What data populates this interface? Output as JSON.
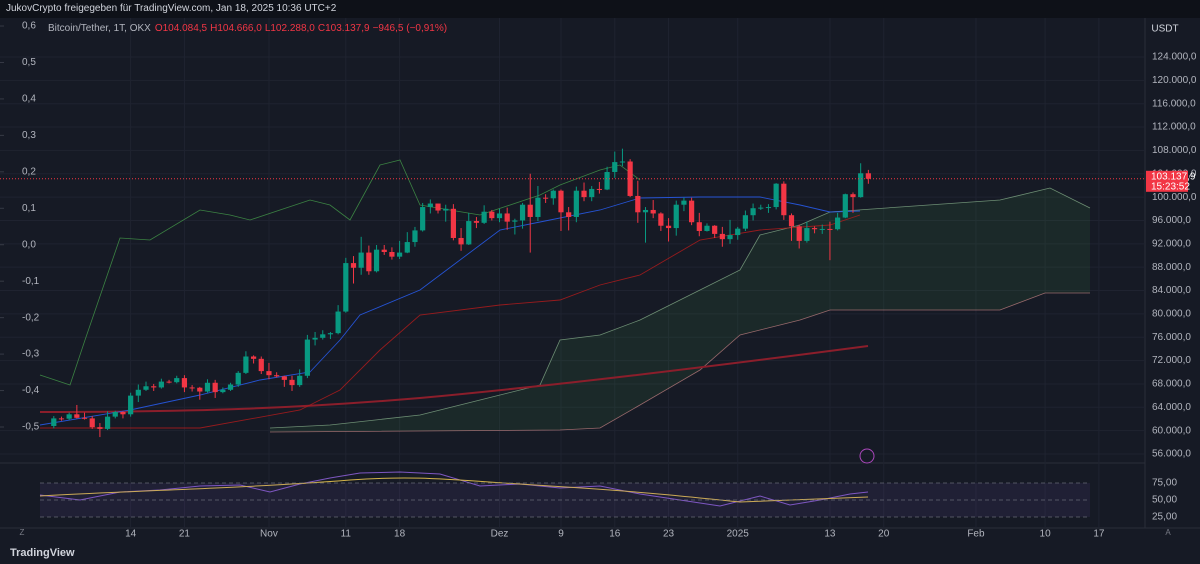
{
  "header": "JukovCrypto freigegeben für TradingView.com, Jan 18, 2025 10:36 UTC+2",
  "footer": "TradingView",
  "controls": [
    "Z",
    "A"
  ],
  "chart_data": {
    "type": "candlestick",
    "title": "Bitcoin/Tether, 1T, OKX",
    "legend_values": [
      "O104.084,5",
      "H104.666,0",
      "L102.288,0",
      "C103.137,9",
      "−946,5 (−0,91%)"
    ],
    "currency": "USDT",
    "price_label": "103.137,9",
    "countdown": "15:23:52",
    "up_color": "#089981",
    "down_color": "#f23645",
    "grid": true,
    "xlim": [
      "2024-09-27",
      "2025-02-23"
    ],
    "xticks": [
      {
        "value": "2024-10-14",
        "label": "14"
      },
      {
        "value": "2024-10-21",
        "label": "21"
      },
      {
        "value": "2024-11-01",
        "label": "Nov"
      },
      {
        "value": "2024-11-11",
        "label": "11"
      },
      {
        "value": "2024-11-18",
        "label": "18"
      },
      {
        "value": "2024-12-01",
        "label": "Dez"
      },
      {
        "value": "2024-12-09",
        "label": "9"
      },
      {
        "value": "2024-12-16",
        "label": "16"
      },
      {
        "value": "2024-12-23",
        "label": "23"
      },
      {
        "value": "2025-01-01",
        "label": "2025"
      },
      {
        "value": "2025-01-13",
        "label": "13"
      },
      {
        "value": "2025-01-20",
        "label": "20"
      },
      {
        "value": "2025-02-01",
        "label": "Feb"
      },
      {
        "value": "2025-02-10",
        "label": "10"
      },
      {
        "value": "2025-02-17",
        "label": "17"
      }
    ],
    "ylim": [
      54630,
      130680
    ],
    "yticks": [
      {
        "value": 124000,
        "label": "124.000,0"
      },
      {
        "value": 120000,
        "label": "120.000,0"
      },
      {
        "value": 116000,
        "label": "116.000,0"
      },
      {
        "value": 112000,
        "label": "112.000,0"
      },
      {
        "value": 108000,
        "label": "108.000,0"
      },
      {
        "value": 104000,
        "label": "104.000,0"
      },
      {
        "value": 100000,
        "label": "100.000,0"
      },
      {
        "value": 96000,
        "label": "96.000,0"
      },
      {
        "value": 92000,
        "label": "92.000,0"
      },
      {
        "value": 88000,
        "label": "88.000,0"
      },
      {
        "value": 84000,
        "label": "84.000,0"
      },
      {
        "value": 80000,
        "label": "80.000,0"
      },
      {
        "value": 76000,
        "label": "76.000,0"
      },
      {
        "value": 72000,
        "label": "72.000,0"
      },
      {
        "value": 68000,
        "label": "68.000,0"
      },
      {
        "value": 64000,
        "label": "64.000,0"
      },
      {
        "value": 60000,
        "label": "60.000,0"
      },
      {
        "value": 56000,
        "label": "56.000,0"
      }
    ],
    "y2lim": [
      -0.596,
      0.622
    ],
    "y2ticks": [
      {
        "value": 0.6,
        "label": "0,6"
      },
      {
        "value": 0.5,
        "label": "0,5"
      },
      {
        "value": 0.4,
        "label": "0,4"
      },
      {
        "value": 0.3,
        "label": "0,3"
      },
      {
        "value": 0.2,
        "label": "0,2"
      },
      {
        "value": 0.1,
        "label": "0,1"
      },
      {
        "value": 0,
        "label": "0,0"
      },
      {
        "value": -0.1,
        "label": "-0,1"
      },
      {
        "value": -0.2,
        "label": "-0,2"
      },
      {
        "value": -0.3,
        "label": "-0,3"
      },
      {
        "value": -0.4,
        "label": "-0,4"
      },
      {
        "value": -0.5,
        "label": "-0,5"
      }
    ],
    "rsi": {
      "ylim": [
        17.6,
        100
      ],
      "yticks": [
        {
          "value": 75,
          "label": "75,00"
        },
        {
          "value": 50,
          "label": "50,00"
        },
        {
          "value": 25,
          "label": "25,00"
        }
      ]
    },
    "x": [
      "2024-10-04",
      "2024-10-05",
      "2024-10-06",
      "2024-10-07",
      "2024-10-08",
      "2024-10-09",
      "2024-10-10",
      "2024-10-11",
      "2024-10-12",
      "2024-10-13",
      "2024-10-14",
      "2024-10-15",
      "2024-10-16",
      "2024-10-17",
      "2024-10-18",
      "2024-10-19",
      "2024-10-20",
      "2024-10-21",
      "2024-10-22",
      "2024-10-23",
      "2024-10-24",
      "2024-10-25",
      "2024-10-26",
      "2024-10-27",
      "2024-10-28",
      "2024-10-29",
      "2024-10-30",
      "2024-10-31",
      "2024-11-01",
      "2024-11-02",
      "2024-11-03",
      "2024-11-04",
      "2024-11-05",
      "2024-11-06",
      "2024-11-07",
      "2024-11-08",
      "2024-11-09",
      "2024-11-10",
      "2024-11-11",
      "2024-11-12",
      "2024-11-13",
      "2024-11-14",
      "2024-11-15",
      "2024-11-16",
      "2024-11-17",
      "2024-11-18",
      "2024-11-19",
      "2024-11-20",
      "2024-11-21",
      "2024-11-22",
      "2024-11-23",
      "2024-11-24",
      "2024-11-25",
      "2024-11-26",
      "2024-11-27",
      "2024-11-28",
      "2024-11-29",
      "2024-11-30",
      "2024-12-01",
      "2024-12-02",
      "2024-12-03",
      "2024-12-04",
      "2024-12-05",
      "2024-12-06",
      "2024-12-07",
      "2024-12-08",
      "2024-12-09",
      "2024-12-10",
      "2024-12-11",
      "2024-12-12",
      "2024-12-13",
      "2024-12-14",
      "2024-12-15",
      "2024-12-16",
      "2024-12-17",
      "2024-12-18",
      "2024-12-19",
      "2024-12-20",
      "2024-12-21",
      "2024-12-22",
      "2024-12-23",
      "2024-12-24",
      "2024-12-25",
      "2024-12-26",
      "2024-12-27",
      "2024-12-28",
      "2024-12-29",
      "2024-12-30",
      "2024-12-31",
      "2025-01-01",
      "2025-01-02",
      "2025-01-03",
      "2025-01-04",
      "2025-01-05",
      "2025-01-06",
      "2025-01-07",
      "2025-01-08",
      "2025-01-09",
      "2025-01-10",
      "2025-01-11",
      "2025-01-12",
      "2025-01-13",
      "2025-01-14",
      "2025-01-15",
      "2025-01-16",
      "2025-01-17",
      "2025-01-18"
    ],
    "values": [
      [
        60800,
        62500,
        60400,
        62100
      ],
      [
        62100,
        62400,
        61700,
        62050
      ],
      [
        62050,
        63100,
        61800,
        62800
      ],
      [
        62800,
        64400,
        62100,
        62200
      ],
      [
        62200,
        63100,
        61900,
        62100
      ],
      [
        62100,
        62500,
        60300,
        60600
      ],
      [
        60600,
        61300,
        58900,
        60300
      ],
      [
        60300,
        63300,
        60100,
        62400
      ],
      [
        62400,
        63400,
        62100,
        63200
      ],
      [
        63200,
        63300,
        62100,
        62800
      ],
      [
        62800,
        66500,
        62400,
        66000
      ],
      [
        66000,
        67900,
        64900,
        67000
      ],
      [
        67000,
        68400,
        66800,
        67600
      ],
      [
        67600,
        68000,
        66800,
        67400
      ],
      [
        67400,
        68900,
        67200,
        68400
      ],
      [
        68400,
        68700,
        68100,
        68300
      ],
      [
        68300,
        69400,
        68100,
        69000
      ],
      [
        69000,
        69500,
        66600,
        67400
      ],
      [
        67400,
        67800,
        66700,
        67350
      ],
      [
        67350,
        67500,
        65300,
        66700
      ],
      [
        66700,
        68800,
        66500,
        68200
      ],
      [
        68200,
        68700,
        65600,
        66600
      ],
      [
        66600,
        67400,
        66400,
        67000
      ],
      [
        67000,
        68200,
        66800,
        67900
      ],
      [
        67900,
        70200,
        67500,
        69900
      ],
      [
        69900,
        73600,
        69700,
        72700
      ],
      [
        72700,
        72900,
        71500,
        72300
      ],
      [
        72300,
        72700,
        69700,
        70200
      ],
      [
        70200,
        71600,
        68800,
        69500
      ],
      [
        69500,
        70000,
        69100,
        69300
      ],
      [
        69300,
        69400,
        67500,
        68700
      ],
      [
        68700,
        69400,
        66800,
        67800
      ],
      [
        67800,
        70500,
        67500,
        69400
      ],
      [
        69400,
        76400,
        69000,
        75600
      ],
      [
        75600,
        76900,
        74600,
        75900
      ],
      [
        75900,
        77200,
        75600,
        76500
      ],
      [
        76500,
        76900,
        75700,
        76700
      ],
      [
        76700,
        81500,
        76500,
        80400
      ],
      [
        80400,
        89600,
        80200,
        88700
      ],
      [
        88700,
        89900,
        85200,
        87900
      ],
      [
        87900,
        93200,
        86700,
        90500
      ],
      [
        90500,
        91700,
        86700,
        87300
      ],
      [
        87300,
        91800,
        87100,
        91000
      ],
      [
        91000,
        91800,
        90100,
        90600
      ],
      [
        90600,
        91400,
        89300,
        89800
      ],
      [
        89800,
        92500,
        89400,
        90500
      ],
      [
        90500,
        94000,
        90400,
        92300
      ],
      [
        92300,
        94900,
        91500,
        94300
      ],
      [
        94300,
        99000,
        94100,
        98300
      ],
      [
        98300,
        99600,
        97200,
        98900
      ],
      [
        98900,
        98900,
        97200,
        97700
      ],
      [
        97700,
        98700,
        95800,
        98000
      ],
      [
        98000,
        98800,
        92600,
        93000
      ],
      [
        93000,
        94700,
        90800,
        91900
      ],
      [
        91900,
        97300,
        91800,
        95900
      ],
      [
        95900,
        96600,
        94700,
        95600
      ],
      [
        95600,
        98600,
        95400,
        97500
      ],
      [
        97500,
        97800,
        96000,
        96400
      ],
      [
        96400,
        98000,
        95700,
        97200
      ],
      [
        97200,
        98200,
        94400,
        95800
      ],
      [
        95800,
        96300,
        93600,
        96000
      ],
      [
        96000,
        99000,
        94600,
        98700
      ],
      [
        98700,
        104000,
        90500,
        96600
      ],
      [
        96600,
        101900,
        95900,
        99900
      ],
      [
        99900,
        100500,
        99000,
        99800
      ],
      [
        99800,
        101300,
        98700,
        101100
      ],
      [
        101100,
        101300,
        94200,
        97400
      ],
      [
        97400,
        98300,
        94300,
        96600
      ],
      [
        96600,
        101800,
        95700,
        101100
      ],
      [
        101100,
        102500,
        99300,
        100000
      ],
      [
        100000,
        101900,
        99300,
        101400
      ],
      [
        101400,
        102600,
        100600,
        101300
      ],
      [
        101300,
        105200,
        101200,
        104300
      ],
      [
        104300,
        107800,
        103300,
        106000
      ],
      [
        106000,
        108300,
        105300,
        106100
      ],
      [
        106100,
        106500,
        100000,
        100200
      ],
      [
        100200,
        102800,
        95600,
        97400
      ],
      [
        97400,
        98300,
        92200,
        97800
      ],
      [
        97800,
        99500,
        96400,
        97200
      ],
      [
        97200,
        97400,
        94200,
        95100
      ],
      [
        95100,
        96400,
        92400,
        94700
      ],
      [
        94700,
        99400,
        93400,
        98700
      ],
      [
        98700,
        99900,
        97600,
        99400
      ],
      [
        99400,
        99900,
        95200,
        95700
      ],
      [
        95700,
        97300,
        93300,
        94200
      ],
      [
        94200,
        95500,
        94100,
        95100
      ],
      [
        95100,
        95200,
        93000,
        93700
      ],
      [
        93700,
        94900,
        91500,
        92800
      ],
      [
        92800,
        96100,
        92000,
        93500
      ],
      [
        93500,
        94900,
        92700,
        94600
      ],
      [
        94600,
        97700,
        94200,
        96900
      ],
      [
        96900,
        98900,
        96000,
        98100
      ],
      [
        98100,
        98700,
        97800,
        98200
      ],
      [
        98200,
        98800,
        97300,
        98300
      ],
      [
        98300,
        102400,
        97900,
        102300
      ],
      [
        102300,
        102700,
        96100,
        96900
      ],
      [
        96900,
        97200,
        92500,
        95000
      ],
      [
        95000,
        95300,
        91200,
        92500
      ],
      [
        92500,
        95800,
        92200,
        94700
      ],
      [
        94700,
        95000,
        93800,
        94500
      ],
      [
        94500,
        95300,
        93700,
        94550
      ],
      [
        94550,
        95800,
        89200,
        94500
      ],
      [
        94500,
        97300,
        94300,
        96500
      ],
      [
        96500,
        100600,
        96400,
        100500
      ],
      [
        100500,
        100800,
        97300,
        100000
      ],
      [
        100000,
        105800,
        99900,
        104084.5
      ],
      [
        104084.5,
        104666,
        102288,
        103137.9
      ]
    ]
  }
}
